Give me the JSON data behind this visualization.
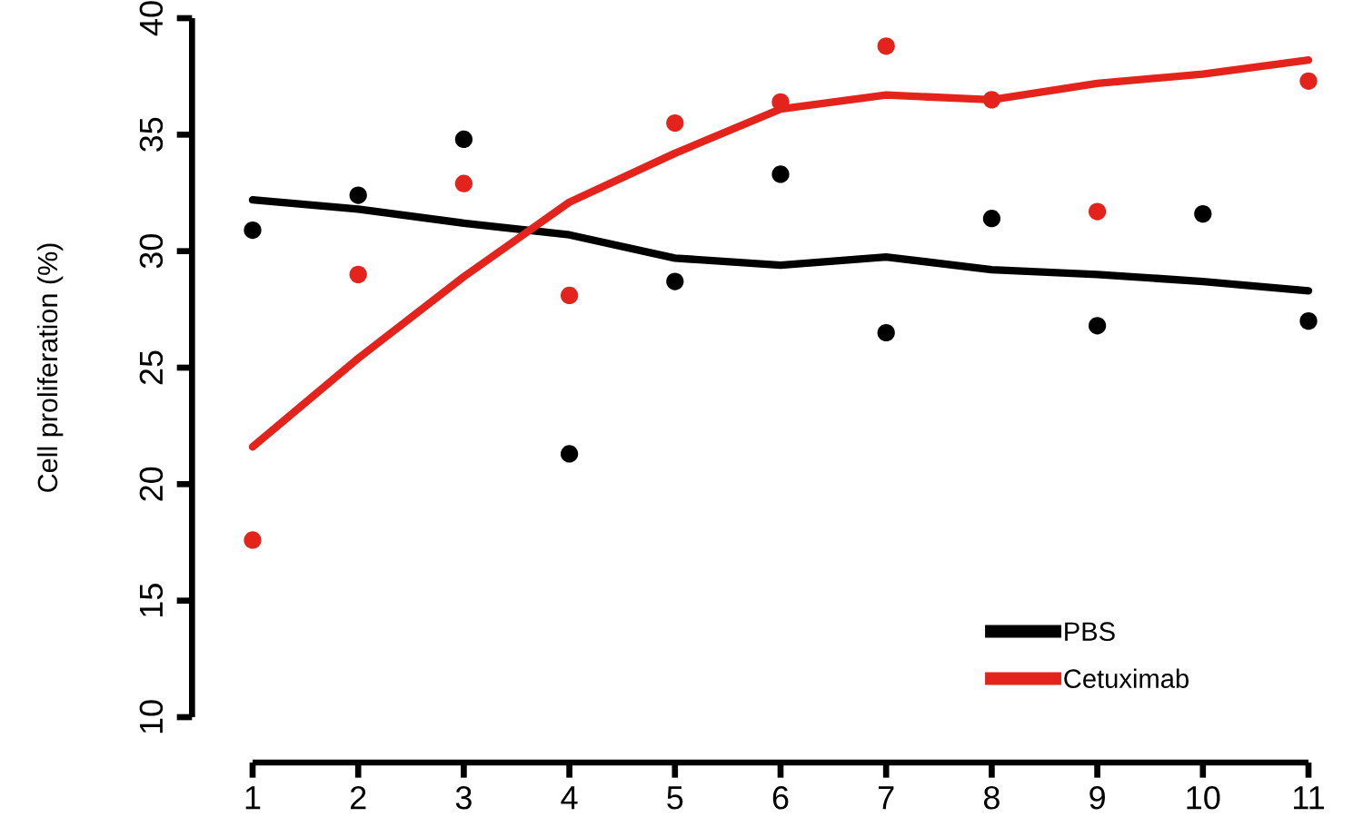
{
  "chart_data": {
    "type": "line",
    "ylabel": "Cell proliferation (%)",
    "x": [
      1,
      2,
      3,
      4,
      5,
      6,
      7,
      8,
      9,
      10,
      11
    ],
    "xlim": [
      1,
      11
    ],
    "xticks": [
      1,
      2,
      3,
      4,
      5,
      6,
      7,
      8,
      9,
      10,
      11
    ],
    "ylim": [
      10,
      40
    ],
    "yticks": [
      10,
      15,
      20,
      25,
      30,
      35,
      40
    ],
    "legend": "bottom right",
    "series": [
      {
        "name": "PBS",
        "color": "#000000",
        "values": [
          32.2,
          31.8,
          31.2,
          30.7,
          29.7,
          29.4,
          29.75,
          29.2,
          29.0,
          28.7,
          28.3
        ]
      },
      {
        "name": "Cetuximab",
        "color": "#e3231c",
        "values": [
          21.6,
          25.4,
          28.9,
          32.1,
          34.2,
          36.1,
          36.7,
          36.5,
          37.2,
          37.6,
          38.2
        ]
      },
      {
        "type": "scatter",
        "marker": "circle",
        "color": "#000000",
        "values": [
          30.9,
          32.4,
          34.8,
          21.3,
          28.7,
          33.3,
          26.5,
          31.4,
          26.8,
          31.6,
          27.0
        ]
      },
      {
        "type": "scatter",
        "marker": "circle",
        "color": "#e3231c",
        "values": [
          17.6,
          29.0,
          32.9,
          28.1,
          35.5,
          36.4,
          38.8,
          36.5,
          31.7,
          null,
          37.3
        ]
      }
    ]
  }
}
